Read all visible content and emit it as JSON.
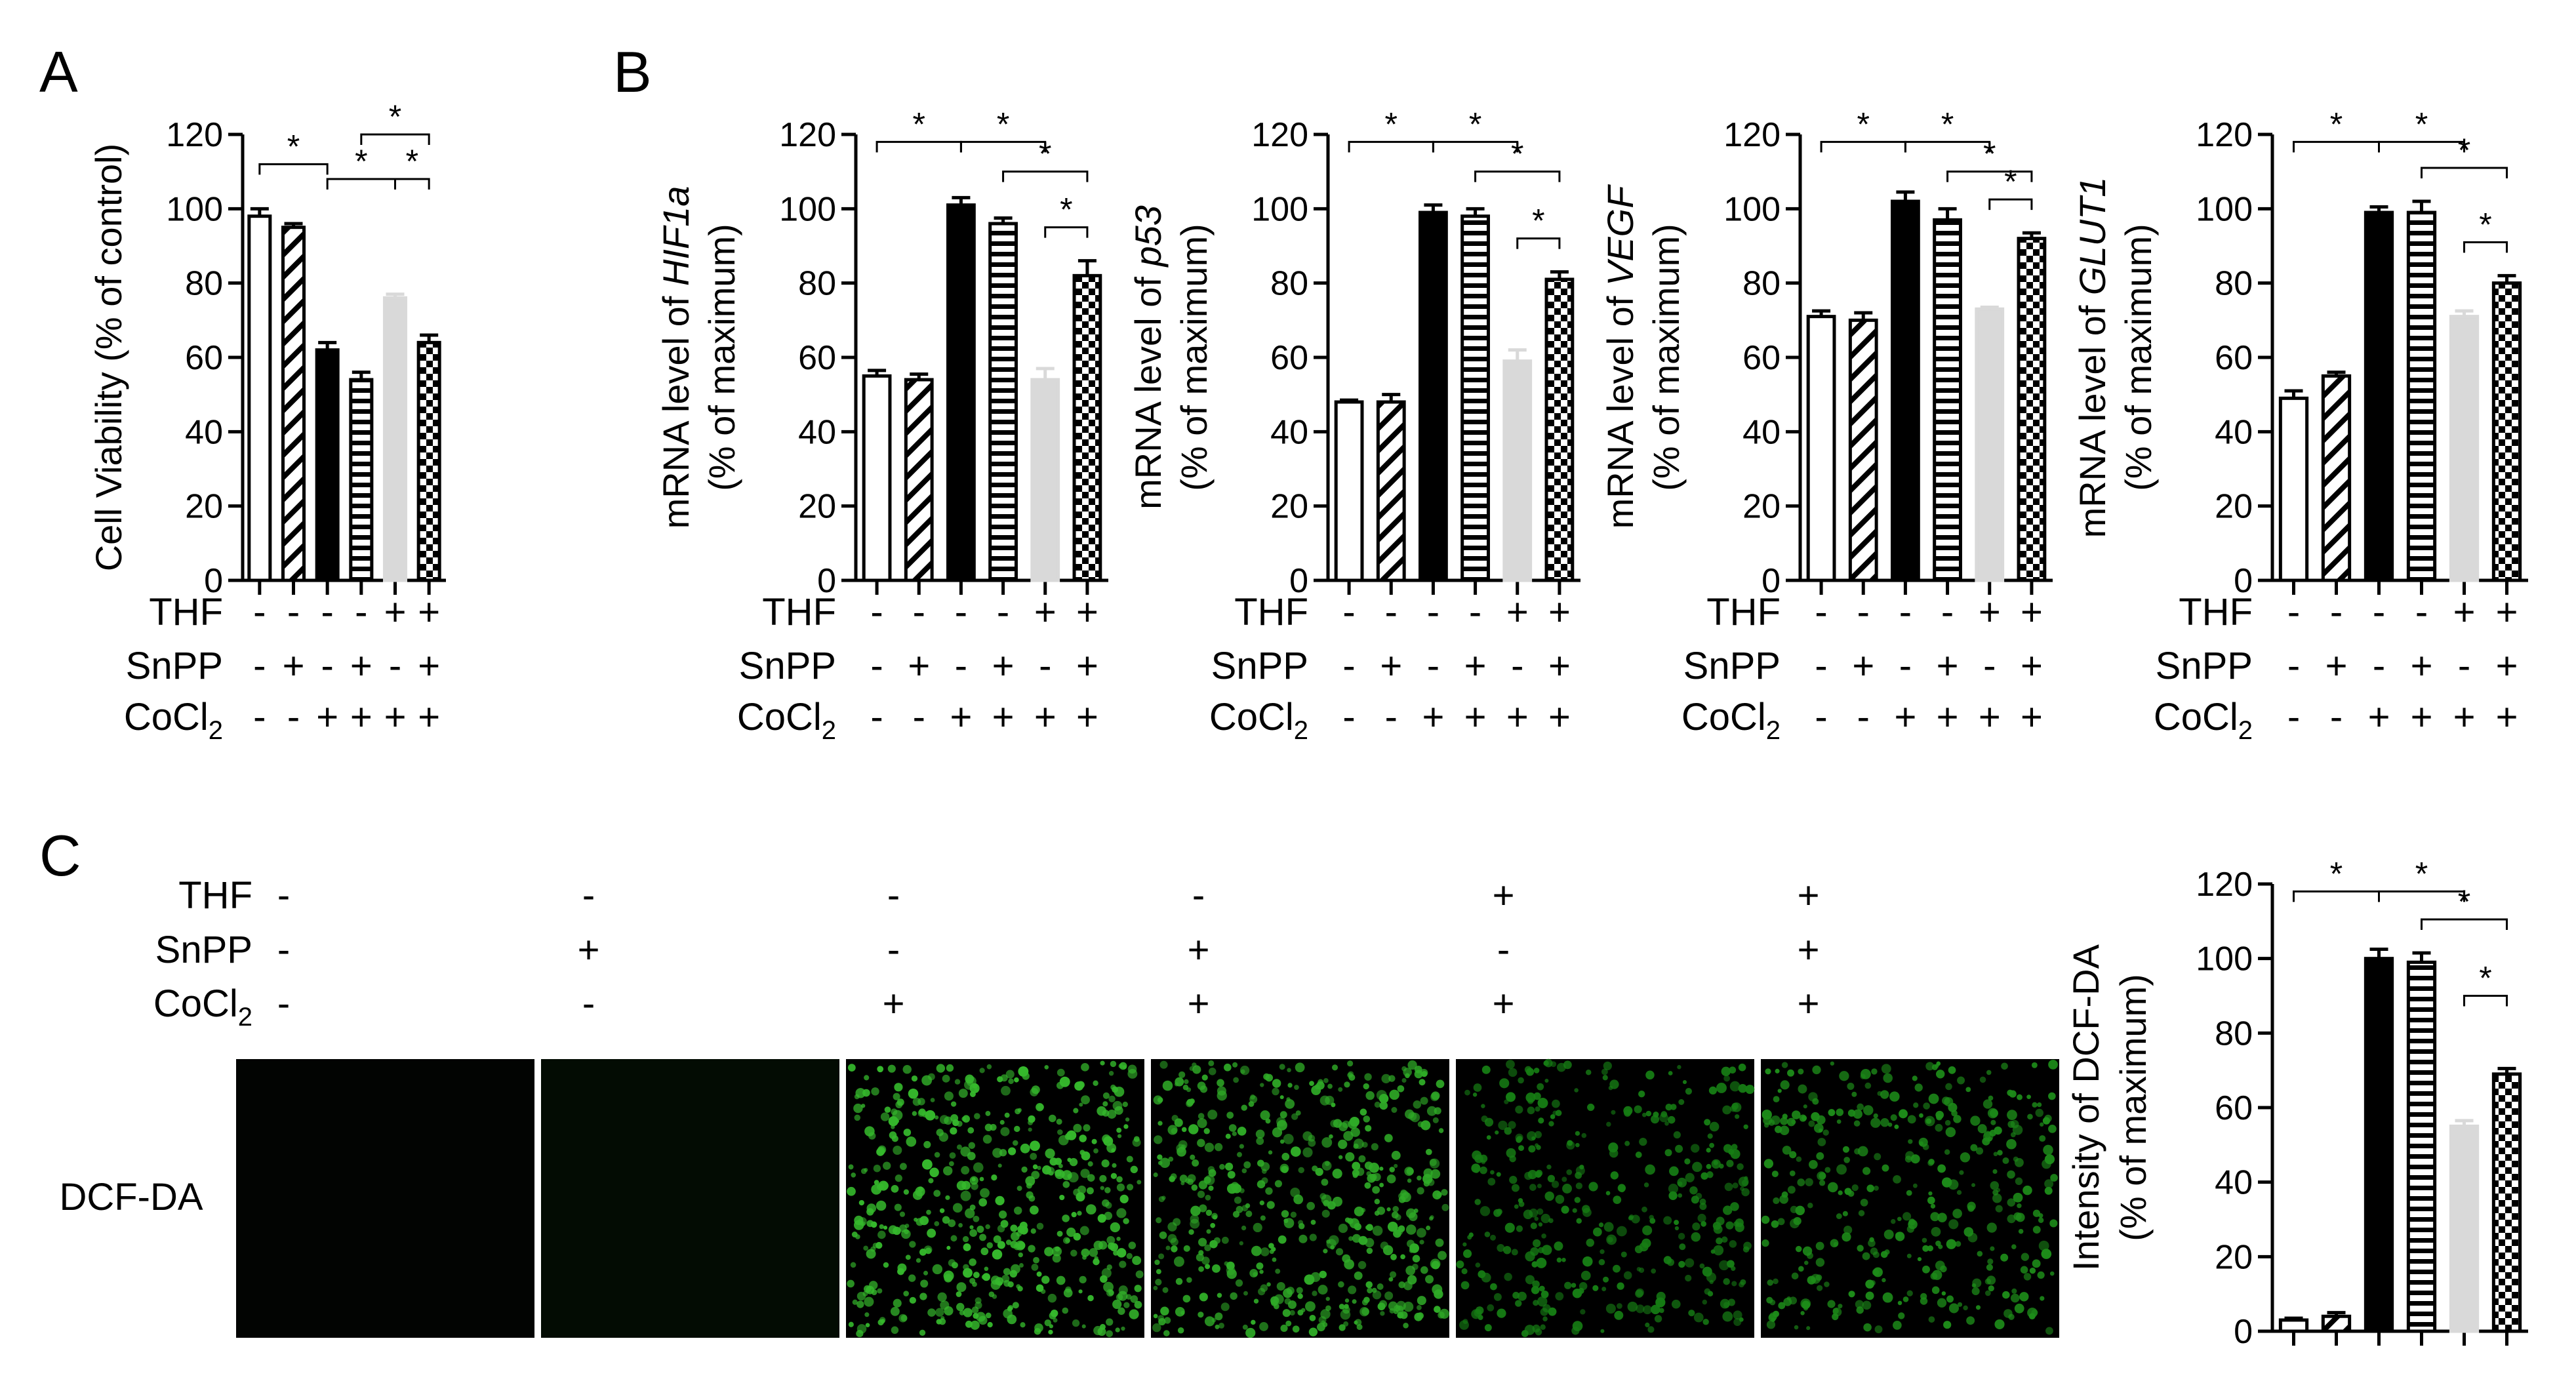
{
  "panels": {
    "a": "A",
    "b": "B",
    "c": "C"
  },
  "treatments": {
    "labels": [
      "THF",
      "SnPP",
      "CoCl2"
    ],
    "rows": [
      [
        "-",
        "-",
        "-",
        "-",
        "+",
        "+"
      ],
      [
        "-",
        "+",
        "-",
        "+",
        "-",
        "+"
      ],
      [
        "-",
        "-",
        "+",
        "+",
        "+",
        "+"
      ]
    ]
  },
  "image_row": {
    "label": "DCF-DA",
    "tile_colors": [
      "#020402",
      "#030c03",
      "#35b82c",
      "#2fab27",
      "#167d14",
      "#1d8c19"
    ]
  },
  "bar_styles": [
    {
      "fill": "white"
    },
    {
      "fill": "diagonal"
    },
    {
      "fill": "black"
    },
    {
      "fill": "horizontal"
    },
    {
      "fill": "#d9d9d9"
    },
    {
      "fill": "checker"
    }
  ],
  "chart_data": [
    {
      "type": "bar",
      "panel": "A",
      "ylabel": "Cell Viability (% of control)",
      "ylim": [
        0,
        120
      ],
      "yticks": [
        0,
        20,
        40,
        60,
        80,
        100,
        120
      ],
      "values": [
        98,
        95,
        62,
        54,
        76,
        64
      ],
      "errors": [
        2,
        1,
        2,
        2,
        1,
        2
      ],
      "significance": [
        [
          0,
          2
        ],
        [
          2,
          4
        ],
        [
          3,
          5
        ],
        [
          4,
          5
        ]
      ],
      "star": "*"
    },
    {
      "type": "bar",
      "panel": "B",
      "ylabel": "mRNA level of HIF1a",
      "ylabel_prefix": "mRNA level of ",
      "ylabel_gene": "HIF1a",
      "ylabel2": "(% of maximum)",
      "ylim": [
        0,
        120
      ],
      "yticks": [
        0,
        20,
        40,
        60,
        80,
        100,
        120
      ],
      "values": [
        55,
        54,
        101,
        96,
        54,
        82
      ],
      "errors": [
        1.5,
        1.5,
        2,
        1.5,
        3,
        4
      ],
      "significance": [
        [
          0,
          2
        ],
        [
          2,
          4
        ],
        [
          3,
          5
        ],
        [
          4,
          5
        ]
      ],
      "star": "*"
    },
    {
      "type": "bar",
      "panel": "B",
      "ylabel": "mRNA level of p53",
      "ylabel_prefix": "mRNA level of ",
      "ylabel_gene": "p53",
      "ylabel2": "(% of maximum)",
      "ylim": [
        0,
        120
      ],
      "yticks": [
        0,
        20,
        40,
        60,
        80,
        100,
        120
      ],
      "values": [
        48,
        48,
        99,
        98,
        59,
        81
      ],
      "errors": [
        0.5,
        2,
        2,
        2,
        3,
        2
      ],
      "significance": [
        [
          0,
          2
        ],
        [
          2,
          4
        ],
        [
          3,
          5
        ],
        [
          4,
          5
        ]
      ],
      "star": "*"
    },
    {
      "type": "bar",
      "panel": "B",
      "ylabel": "mRNA level of VEGF",
      "ylabel_prefix": "mRNA level of ",
      "ylabel_gene": "VEGF",
      "ylabel2": "(% of maximum)",
      "ylim": [
        0,
        120
      ],
      "yticks": [
        0,
        20,
        40,
        60,
        80,
        100,
        120
      ],
      "values": [
        71,
        70,
        102,
        97,
        73,
        92
      ],
      "errors": [
        1.5,
        2,
        2.5,
        3,
        0.5,
        1.5
      ],
      "significance": [
        [
          0,
          2
        ],
        [
          2,
          4
        ],
        [
          3,
          5
        ],
        [
          4,
          5
        ]
      ],
      "star": "*"
    },
    {
      "type": "bar",
      "panel": "B",
      "ylabel": "mRNA level of GLUT1",
      "ylabel_prefix": "mRNA level of ",
      "ylabel_gene": "GLUT1",
      "ylabel2": "(% of maximum)",
      "ylim": [
        0,
        120
      ],
      "yticks": [
        0,
        20,
        40,
        60,
        80,
        100,
        120
      ],
      "values": [
        49,
        55,
        99,
        99,
        71,
        80
      ],
      "errors": [
        2,
        1,
        1.5,
        3,
        1.5,
        2
      ],
      "significance": [
        [
          0,
          2
        ],
        [
          2,
          4
        ],
        [
          3,
          5
        ],
        [
          4,
          5
        ]
      ],
      "star": "*"
    },
    {
      "type": "bar",
      "panel": "C",
      "ylabel": "Intensity of DCF-DA",
      "ylabel2": "(% of maximum)",
      "ylim": [
        0,
        120
      ],
      "yticks": [
        0,
        20,
        40,
        60,
        80,
        100,
        120
      ],
      "values": [
        3,
        4,
        100,
        99,
        55,
        69
      ],
      "errors": [
        0.5,
        1,
        2.5,
        2.5,
        1.5,
        1.5
      ],
      "significance": [
        [
          0,
          2
        ],
        [
          2,
          4
        ],
        [
          3,
          5
        ],
        [
          4,
          5
        ]
      ],
      "star": "*"
    }
  ]
}
